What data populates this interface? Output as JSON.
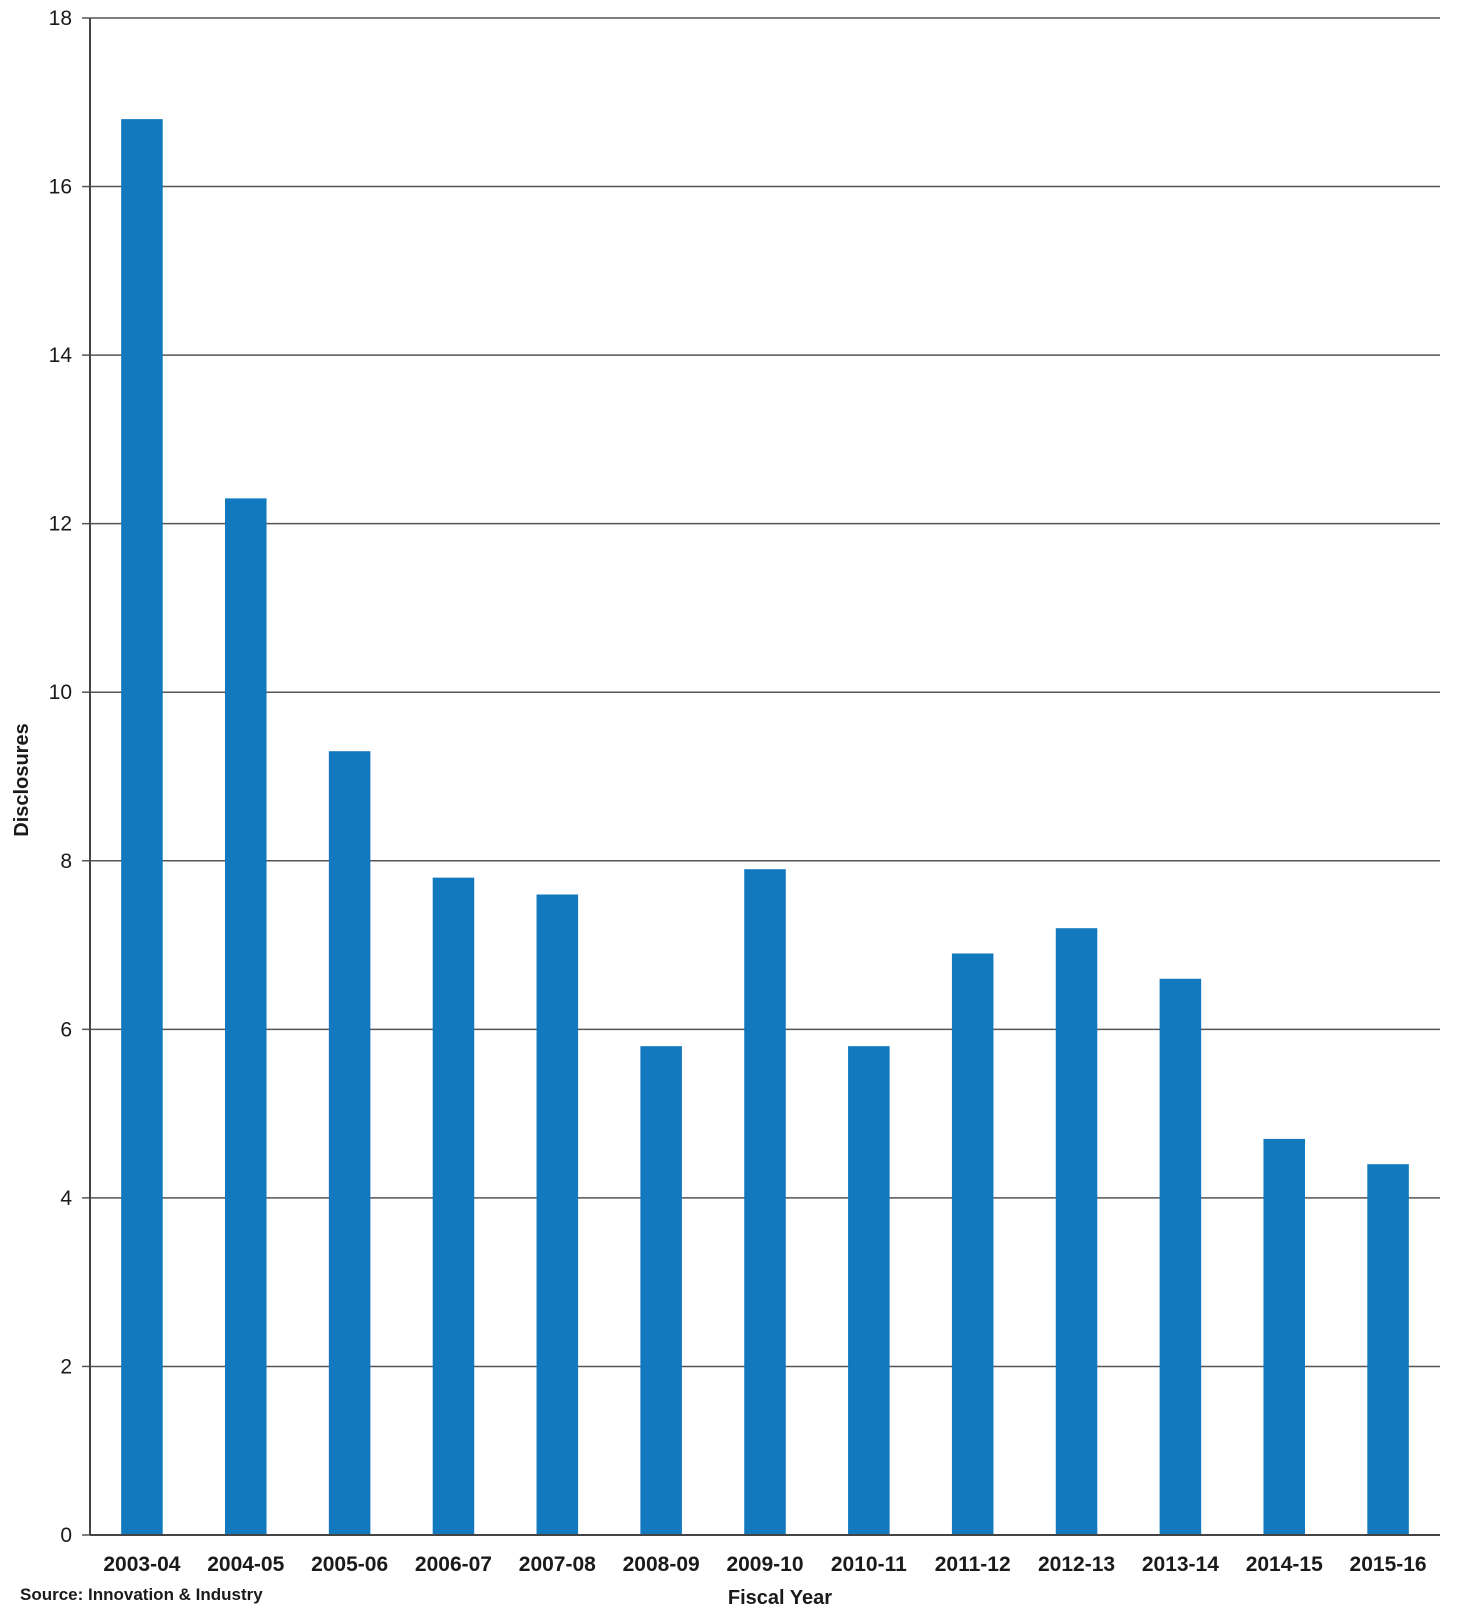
{
  "chart_data": {
    "type": "bar",
    "title": "",
    "xlabel": "Fiscal Year",
    "ylabel": "Disclosures",
    "ylim": [
      0,
      18
    ],
    "yticks": [
      0,
      2,
      4,
      6,
      8,
      10,
      12,
      14,
      16,
      18
    ],
    "grid": true,
    "legend": "none",
    "bar_color": "#1279bf",
    "categories": [
      "2003-04",
      "2004-05",
      "2005-06",
      "2006-07",
      "2007-08",
      "2008-09",
      "2009-10",
      "2010-11",
      "2011-12",
      "2012-13",
      "2013-14",
      "2014-15",
      "2015-16"
    ],
    "values": [
      16.8,
      12.3,
      9.3,
      7.8,
      7.6,
      5.8,
      7.9,
      5.8,
      6.9,
      7.2,
      6.6,
      4.7,
      4.4
    ]
  },
  "source_note": "Source: Innovation & Industry"
}
